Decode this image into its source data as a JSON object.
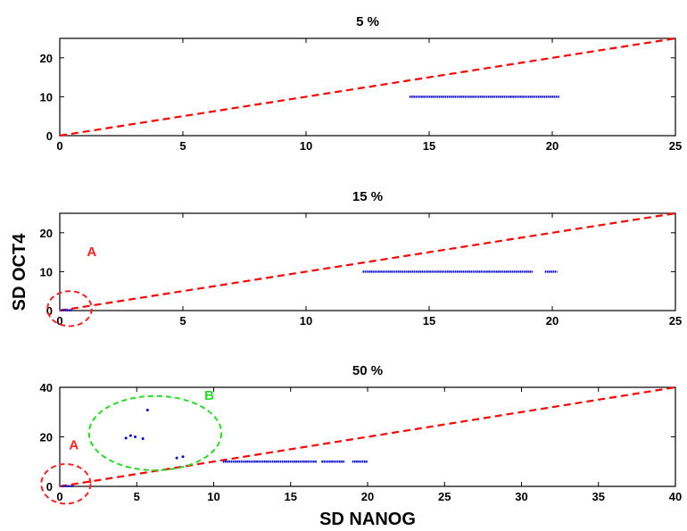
{
  "figure": {
    "ylabel": "SD OCT4",
    "xlabel": "SD NANOG"
  },
  "colors": {
    "diagonal": "#ff0000",
    "points": "#0000cc",
    "annot_A": "#ff2020",
    "annot_B": "#22dd22"
  },
  "chart_data": [
    {
      "type": "scatter",
      "title": "5 %",
      "xlim": [
        0,
        25
      ],
      "ylim": [
        0,
        25
      ],
      "xticks": [
        0,
        5,
        10,
        15,
        20,
        25
      ],
      "yticks": [
        0,
        10,
        20
      ],
      "diagonal": [
        [
          0,
          0
        ],
        [
          25,
          25
        ]
      ],
      "series": [
        {
          "segments": [
            [
              14.2,
              18.3,
              10
            ],
            [
              18.3,
              20.3,
              10
            ]
          ]
        }
      ],
      "points": [],
      "annotations": []
    },
    {
      "type": "scatter",
      "title": "15 %",
      "xlim": [
        0,
        25
      ],
      "ylim": [
        0,
        25
      ],
      "xticks": [
        0,
        5,
        10,
        15,
        20,
        25
      ],
      "yticks": [
        0,
        10,
        20
      ],
      "diagonal": [
        [
          0,
          0
        ],
        [
          25,
          25
        ]
      ],
      "series": [
        {
          "segments": [
            [
              12.3,
              19.2,
              10
            ],
            [
              19.7,
              20.2,
              10
            ],
            [
              0.05,
              0.5,
              0.1
            ]
          ]
        }
      ],
      "points": [],
      "annotations": [
        {
          "label": "A",
          "color": "annot_A",
          "cx": 0.4,
          "cy": 0.5,
          "rx": 0.9,
          "ry": 4.5,
          "label_x": 1.1,
          "label_y": 14
        }
      ]
    },
    {
      "type": "scatter",
      "title": "50 %",
      "xlim": [
        0,
        40
      ],
      "ylim": [
        0,
        40
      ],
      "xticks": [
        0,
        5,
        10,
        15,
        20,
        25,
        30,
        35,
        40
      ],
      "yticks": [
        0,
        20,
        40
      ],
      "diagonal": [
        [
          0,
          0
        ],
        [
          40,
          40
        ]
      ],
      "series": [
        {
          "segments": [
            [
              10.6,
              16.7,
              10
            ],
            [
              17.0,
              18.5,
              10
            ],
            [
              19.0,
              20.0,
              10
            ],
            [
              0.1,
              0.9,
              0.1
            ]
          ]
        }
      ],
      "points": [
        [
          4.3,
          19.5
        ],
        [
          4.6,
          20.5
        ],
        [
          4.9,
          20.0
        ],
        [
          5.4,
          19.3
        ],
        [
          5.7,
          30.8
        ],
        [
          7.6,
          11.5
        ],
        [
          8.0,
          12.0
        ]
      ],
      "annotations": [
        {
          "label": "A",
          "color": "annot_A",
          "cx": 0.4,
          "cy": 1.0,
          "rx": 1.6,
          "ry": 8.0,
          "label_x": 0.6,
          "label_y": 15
        },
        {
          "label": "B",
          "color": "annot_B",
          "cx": 6.2,
          "cy": 21.5,
          "rx": 4.3,
          "ry": 15.0,
          "label_x": 9.4,
          "label_y": 35
        }
      ]
    }
  ]
}
